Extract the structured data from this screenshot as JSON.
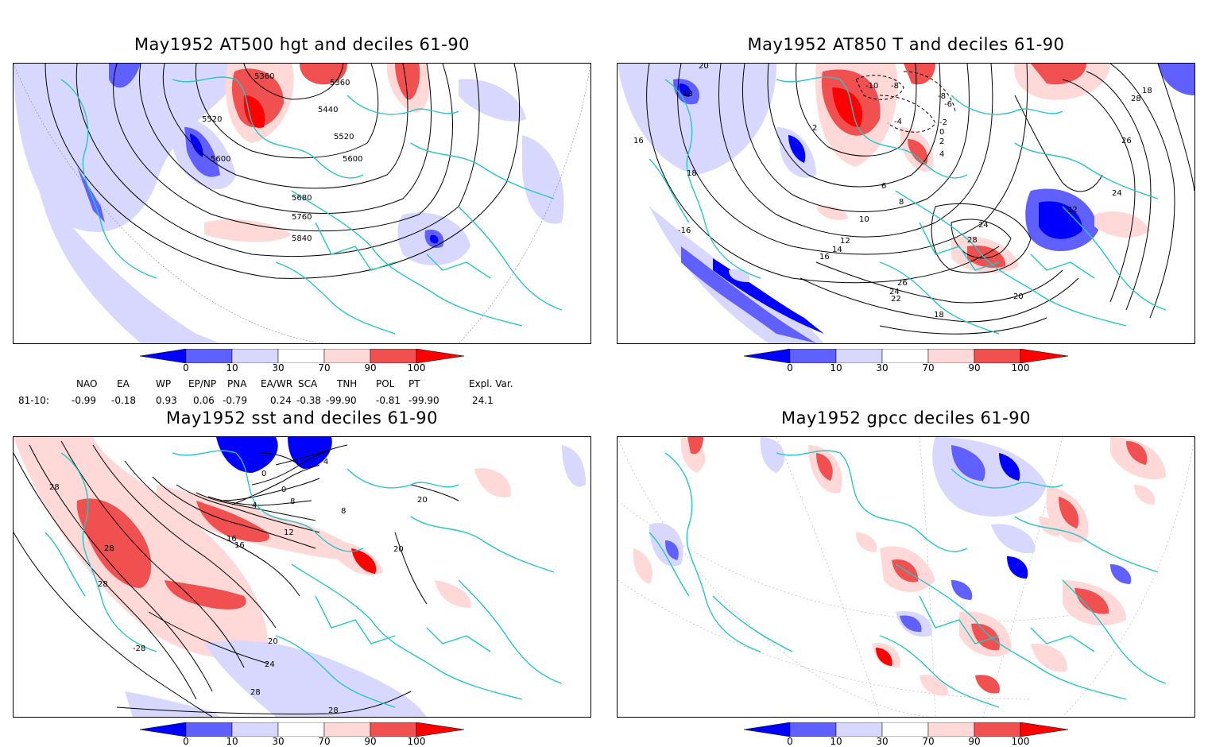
{
  "panels": [
    {
      "title": "May1952 AT500 hgt and deciles 61-90"
    },
    {
      "title": "May1952 AT850 T and deciles 61-90"
    },
    {
      "title": "May1952 sst and deciles 61-90"
    },
    {
      "title": "May1952 gpcc deciles 61-90"
    }
  ],
  "colorbar": {
    "ticks": [
      "0",
      "10",
      "30",
      "70",
      "90",
      "100"
    ],
    "colors": [
      "#0000ff",
      "#6060ff",
      "#d8d8ff",
      "#ffffff",
      "#ffd8d8",
      "#f05050",
      "#ff0000"
    ]
  },
  "contour_labels": {
    "hgt": [
      "5360",
      "5360",
      "5440",
      "5520",
      "5520",
      "5600",
      "5600",
      "5680",
      "5760",
      "5840"
    ],
    "t850": [
      "20",
      "18",
      "16",
      "18",
      "-16",
      "2",
      "-10",
      "-8",
      "-8",
      "-6",
      "-4",
      "-2",
      "0",
      "4",
      "2",
      "6",
      "8",
      "10",
      "12",
      "14",
      "16",
      "28",
      "26",
      "24",
      "22",
      "18",
      "24",
      "28",
      "26",
      "24",
      "22",
      "20",
      "18"
    ],
    "sst": [
      "28",
      "28",
      "28",
      "16",
      "12",
      "4",
      "8",
      "0",
      "0",
      "4",
      "8",
      "20",
      "20",
      "24",
      "28",
      "28",
      "-28",
      "16",
      "20"
    ]
  },
  "indices": {
    "row_label": "81-10:",
    "names": [
      "NAO",
      "EA",
      "WP",
      "EP/NP",
      "PNA",
      "EA/WR",
      "SCA",
      "TNH",
      "POL",
      "PT",
      "Expl. Var."
    ],
    "values": [
      "-0.99",
      "-0.18",
      "0.93",
      "0.06",
      "-0.79",
      "0.24",
      "-0.38",
      "-99.90",
      "-0.81",
      "-99.90",
      "24.1"
    ]
  }
}
